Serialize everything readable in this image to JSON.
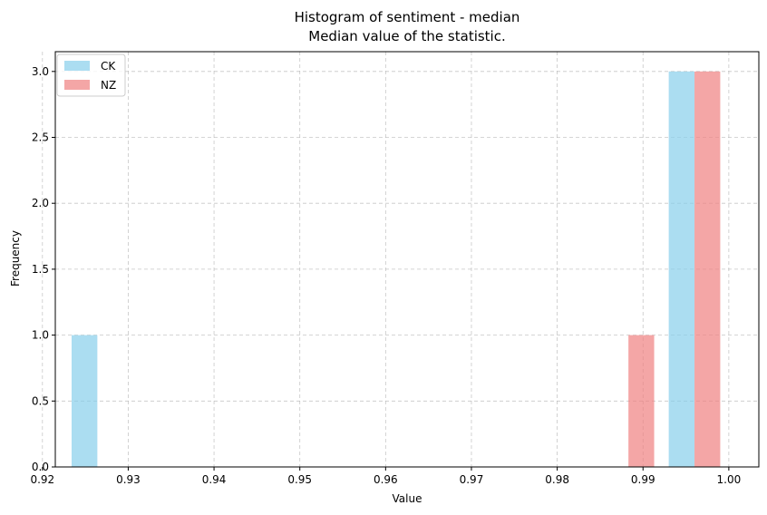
{
  "chart_data": {
    "type": "bar",
    "title": "Histogram of sentiment - median",
    "subtitle": "Median value of the statistic.",
    "xlabel": "Value",
    "ylabel": "Frequency",
    "xlim": [
      0.9215,
      1.0035
    ],
    "ylim": [
      0,
      3.15
    ],
    "xticks": [
      "0.92",
      "0.93",
      "0.94",
      "0.95",
      "0.96",
      "0.97",
      "0.98",
      "0.99",
      "1.00"
    ],
    "xtick_values": [
      0.92,
      0.93,
      0.94,
      0.95,
      0.96,
      0.97,
      0.98,
      0.99,
      1.0
    ],
    "yticks": [
      "0.0",
      "0.5",
      "1.0",
      "1.5",
      "2.0",
      "2.5",
      "3.0"
    ],
    "ytick_values": [
      0,
      0.5,
      1.0,
      1.5,
      2.0,
      2.5,
      3.0
    ],
    "grid": true,
    "legend_position": "top-left",
    "series": [
      {
        "name": "CK",
        "color": "#87ceeb",
        "bars": [
          {
            "x0": 0.9234,
            "x1": 0.9264,
            "value": 1
          },
          {
            "x0": 0.993,
            "x1": 0.996,
            "value": 3
          }
        ]
      },
      {
        "name": "NZ",
        "color": "#f08080",
        "bars": [
          {
            "x0": 0.9883,
            "x1": 0.9913,
            "value": 1
          },
          {
            "x0": 0.996,
            "x1": 0.999,
            "value": 3
          }
        ]
      }
    ]
  }
}
